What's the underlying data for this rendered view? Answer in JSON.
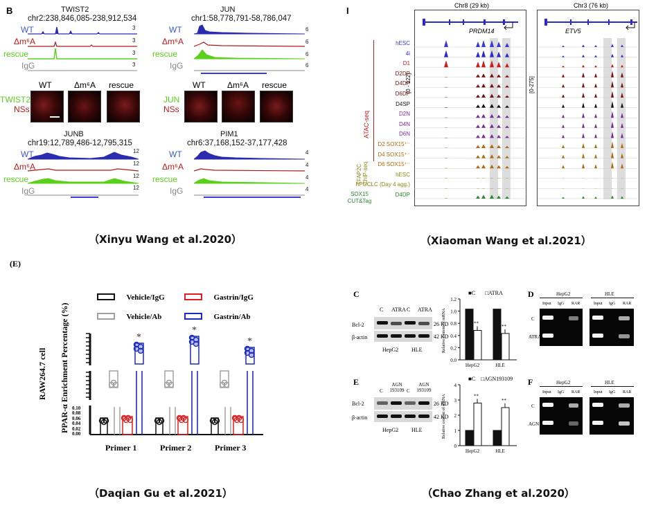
{
  "captions": {
    "tl": "（Xinyu Wang et al.2020）",
    "tr": "（Xiaoman Wang et al.2021）",
    "bl": "（Daqian Gu et al.2021）",
    "br": "（Chao Zhang et al.2020）"
  },
  "panelB": {
    "panel_letter": "B",
    "blocks": [
      {
        "gene": "TWIST2",
        "coord": "chr2:238,846,085-238,912,534",
        "tracks": [
          {
            "name": "WT",
            "scale": "3"
          },
          {
            "name": "Δm⁶A",
            "scale": "3"
          },
          {
            "name": "rescue",
            "scale": "3"
          },
          {
            "name": "IgG",
            "scale": "3"
          }
        ]
      },
      {
        "gene": "JUN",
        "coord": "chr1:58,778,791-58,786,047",
        "tracks": [
          {
            "name": "WT",
            "scale": "6"
          },
          {
            "name": "Δm⁶A",
            "scale": "6"
          },
          {
            "name": "rescue",
            "scale": "6"
          },
          {
            "name": "IgG",
            "scale": "6"
          }
        ]
      },
      {
        "gene": "JUNB",
        "coord": "chr19:12,789,486-12,795,315",
        "tracks": [
          {
            "name": "WT",
            "scale": "12"
          },
          {
            "name": "Δm⁶A",
            "scale": "12"
          },
          {
            "name": "rescue",
            "scale": "12"
          },
          {
            "name": "IgG",
            "scale": "12"
          }
        ]
      },
      {
        "gene": "PIM1",
        "coord": "chr6:37,168,152-37,177,428",
        "tracks": [
          {
            "name": "WT",
            "scale": "4"
          },
          {
            "name": "Δm⁶A",
            "scale": "4"
          },
          {
            "name": "rescue",
            "scale": "4"
          },
          {
            "name": "IgG",
            "scale": "4"
          }
        ]
      }
    ],
    "image_rows": [
      {
        "label1": "TWIST2",
        "label2": "NSs",
        "cols": [
          "WT",
          "Δm⁶A",
          "rescue"
        ]
      },
      {
        "label1": "JUN",
        "label2": "NSs",
        "cols": [
          "WT",
          "Δm⁶A",
          "rescue"
        ]
      }
    ],
    "colors": {
      "WT": "#2b2bb0",
      "m6A": "#b01818",
      "rescue": "#5ad01c",
      "IgG": "#777777"
    }
  },
  "panelI": {
    "panel_letter": "I",
    "left": {
      "chrom": "Chr8 (29 kb)",
      "gene": "PRDM14",
      "range": "[0 - 122]"
    },
    "right": {
      "chrom": "Chr3 (76 kb)",
      "gene": "ETV5",
      "range": "[0-275]"
    },
    "groups": {
      "atac": "ATAC-seq",
      "tfap": "TFAP2C ChIP-seq",
      "sox": "SOX15 CUT&Tag"
    },
    "tracks": [
      {
        "name": "hESC",
        "color": "#3a3ad8"
      },
      {
        "name": "4i",
        "color": "#2a2ad0"
      },
      {
        "name": "D1",
        "color": "#cc1c1c"
      },
      {
        "name": "D2DP",
        "color": "#7a1010"
      },
      {
        "name": "D4DP",
        "color": "#7a1010"
      },
      {
        "name": "D6DP",
        "color": "#7a1010"
      },
      {
        "name": "D4SP",
        "color": "#111111"
      },
      {
        "name": "D2N",
        "color": "#7a2a9a"
      },
      {
        "name": "D4N",
        "color": "#7a2a9a"
      },
      {
        "name": "D6N",
        "color": "#7a2a9a"
      },
      {
        "name": "D2 SOX15⁺⁻",
        "color": "#b06a10"
      },
      {
        "name": "D4 SOX15⁺⁻",
        "color": "#b06a10"
      },
      {
        "name": "D6 SOX15⁺⁻",
        "color": "#b06a10"
      },
      {
        "name": "hESC",
        "color": "#8a8a10"
      },
      {
        "name": "hPGCLC (Day 4 agg.)",
        "color": "#8a8a10"
      },
      {
        "name": "D4DP",
        "color": "#2a8a2a"
      }
    ]
  },
  "panelE": {
    "panel_letter": "(E)",
    "ylabel": "PPAR-α Enrichment Percentage (%)",
    "cell_label": "RAW264.7 cell",
    "legend": [
      {
        "name": "Vehicle/IgG",
        "color": "#111111"
      },
      {
        "name": "Gastrin/IgG",
        "color": "#e02020"
      },
      {
        "name": "Vehicle/Ab",
        "color": "#a0a0a0"
      },
      {
        "name": "Gastrin/Ab",
        "color": "#1b2bbf"
      }
    ],
    "primers": [
      "Primer 1",
      "Primer 2",
      "Primer 3"
    ],
    "sig": "*",
    "low_ticks": [
      "0.10",
      "0.08",
      "0.06",
      "0.04",
      "0.02",
      "0.00"
    ]
  },
  "panelCDEF": {
    "C": {
      "letter": "C",
      "lanes": [
        "C",
        "ATRA",
        "C",
        "ATRA"
      ],
      "rows": [
        "Bcl-2",
        "β-actin"
      ],
      "kd": [
        "26 KD",
        "42 KD"
      ],
      "cells": [
        "HepG2",
        "HLE"
      ],
      "legend": [
        "■C",
        "□ATRA"
      ],
      "ylabel": "Relative content of mRNA",
      "ticks": [
        "1.2",
        "1.0",
        "0.8",
        "0.4",
        "0.2",
        "0.0"
      ],
      "xcats": [
        "HepG2",
        "HLE"
      ],
      "sig": "**",
      "values": [
        [
          1.0,
          0.58
        ],
        [
          1.0,
          0.52
        ]
      ]
    },
    "D": {
      "letter": "D",
      "cells": [
        "HepG2",
        "HLE"
      ],
      "lanes": [
        "Input",
        "IgG",
        "RAR"
      ],
      "rows": [
        "C",
        "ATRA"
      ]
    },
    "E": {
      "letter": "E",
      "lanes": [
        "C",
        "AGN 193109",
        "C",
        "AGN 193109"
      ],
      "rows": [
        "Bcl-2",
        "β-actin"
      ],
      "kd": [
        "26 KD",
        "42 KD"
      ],
      "cells": [
        "HepG2",
        "HLE"
      ],
      "legend": [
        "■C",
        "□AGN193109"
      ],
      "ylabel": "Relative content of mRNA",
      "ticks": [
        "4",
        "3",
        "2",
        "1",
        "0"
      ],
      "xcats": [
        "HepG2",
        "HLE"
      ],
      "sig": "**",
      "values": [
        [
          1.0,
          2.8
        ],
        [
          1.0,
          2.5
        ]
      ]
    },
    "F": {
      "letter": "F",
      "cells": [
        "HepG2",
        "HLE"
      ],
      "lanes": [
        "Input",
        "IgG",
        "RAR"
      ],
      "rows": [
        "C",
        "AGN"
      ]
    }
  }
}
